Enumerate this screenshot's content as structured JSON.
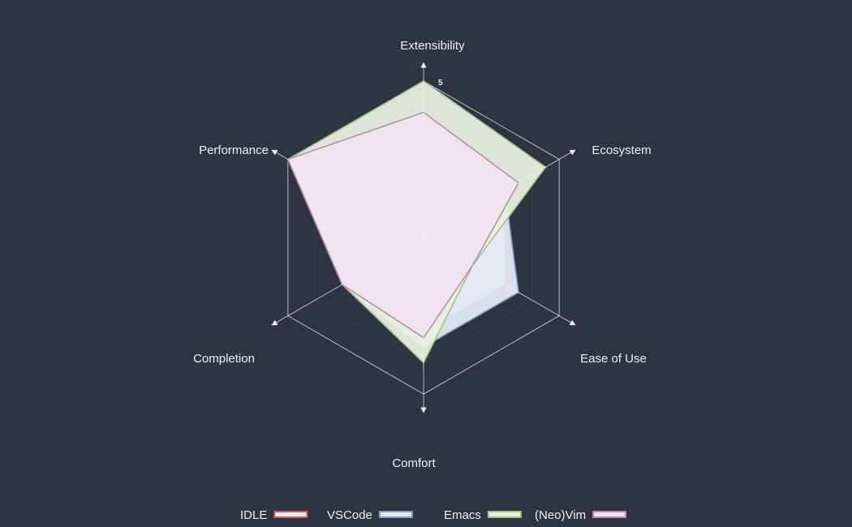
{
  "chart_data": {
    "type": "radar",
    "axes": [
      "Extensibility",
      "Ecosystem",
      "Ease of Use",
      "Comfort",
      "Completion",
      "Performance"
    ],
    "scale_max": 5,
    "levels": 5,
    "tick_labels": [
      "5"
    ],
    "series": [
      {
        "name": "IDLE",
        "values": [
          3,
          3,
          3,
          3,
          3,
          5
        ],
        "color": "#bf616a"
      },
      {
        "name": "VSCode",
        "values": [
          3.5,
          3,
          3.5,
          3.5,
          3,
          3.5
        ],
        "color": "#81a1c1"
      },
      {
        "name": "Emacs",
        "values": [
          5,
          4.5,
          1.8,
          4,
          3,
          5
        ],
        "color": "#a3be8c"
      },
      {
        "name": "(Neo)Vim",
        "values": [
          4,
          3.5,
          1.8,
          3.2,
          3,
          5
        ],
        "color": "#b48ead"
      }
    ],
    "fills": {
      "IDLE": "#f9e3e5",
      "VSCode": "#e3eaf3",
      "Emacs": "#e8efe0",
      "(Neo)Vim": "#f0e4ee"
    },
    "grid_color": "#eceff4",
    "legend_position": "bottom"
  }
}
